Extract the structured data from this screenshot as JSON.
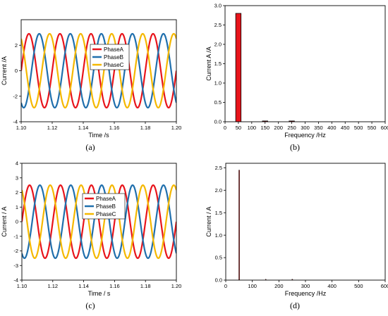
{
  "chart_data": [
    {
      "panel": "(a)",
      "type": "line",
      "xlabel": "Time /s",
      "ylabel": "Current /A",
      "xlim": [
        1.1,
        1.2
      ],
      "ylim": [
        -4,
        4
      ],
      "xticks": [
        "1.10",
        "1.12",
        "1.14",
        "1.16",
        "1.18",
        "1.20"
      ],
      "yticks": [
        "-4",
        "-2",
        "0",
        "2"
      ],
      "frequency_hz": 50,
      "amplitude": 2.9,
      "series": [
        {
          "name": "PhaseA",
          "color": "#e8141b",
          "phase_deg": 0
        },
        {
          "name": "PhaseB",
          "color": "#1f6fad",
          "phase_deg": -120
        },
        {
          "name": "PhaseC",
          "color": "#f5b800",
          "phase_deg": 120
        }
      ],
      "legend": "center"
    },
    {
      "panel": "(b)",
      "type": "bar",
      "xlabel": "Frequency /Hz",
      "ylabel": "Current A /A",
      "xlim": [
        0,
        600
      ],
      "ylim": [
        0,
        3.0
      ],
      "xticks": [
        "0",
        "50",
        "100",
        "150",
        "200",
        "250",
        "300",
        "350",
        "400",
        "450",
        "500",
        "550",
        "600"
      ],
      "yticks": [
        "0.0",
        "0.5",
        "1.0",
        "1.5",
        "2.0",
        "2.5",
        "3.0"
      ],
      "bars": [
        {
          "x": 50,
          "value": 2.8
        },
        {
          "x": 150,
          "value": 0.02
        },
        {
          "x": 250,
          "value": 0.02
        }
      ],
      "bar_width": 20,
      "bar_color": "#e8141b"
    },
    {
      "panel": "(c)",
      "type": "line",
      "xlabel": "Time / s",
      "ylabel": "Current / A",
      "xlim": [
        1.1,
        1.2
      ],
      "ylim": [
        -4,
        4
      ],
      "xticks": [
        "1.10",
        "1.12",
        "1.14",
        "1.16",
        "1.18",
        "1.20"
      ],
      "yticks": [
        "-4",
        "-3",
        "-2",
        "-1",
        "0",
        "1",
        "2",
        "3",
        "4"
      ],
      "frequency_hz": 50,
      "amplitude": 2.5,
      "series": [
        {
          "name": "PhaseA",
          "color": "#e8141b",
          "phase_deg": 0
        },
        {
          "name": "PhaseB",
          "color": "#1f6fad",
          "phase_deg": -120
        },
        {
          "name": "PhaseC",
          "color": "#f5b800",
          "phase_deg": 120
        }
      ],
      "legend": "center-left"
    },
    {
      "panel": "(d)",
      "type": "bar",
      "xlabel": "Frequency /Hz",
      "ylabel": "Current / A",
      "xlim": [
        0,
        600
      ],
      "ylim": [
        0,
        2.6
      ],
      "xticks": [
        "0",
        "100",
        "200",
        "300",
        "400",
        "500",
        "600"
      ],
      "yticks": [
        "0.0",
        "0.5",
        "1.0",
        "1.5",
        "2.0",
        "2.5"
      ],
      "bars": [
        {
          "x": 50,
          "value": 2.45
        },
        {
          "x": 150,
          "value": 0.02
        },
        {
          "x": 250,
          "value": 0.02
        }
      ],
      "bar_width": 2,
      "bar_color": "#7a1010"
    }
  ]
}
